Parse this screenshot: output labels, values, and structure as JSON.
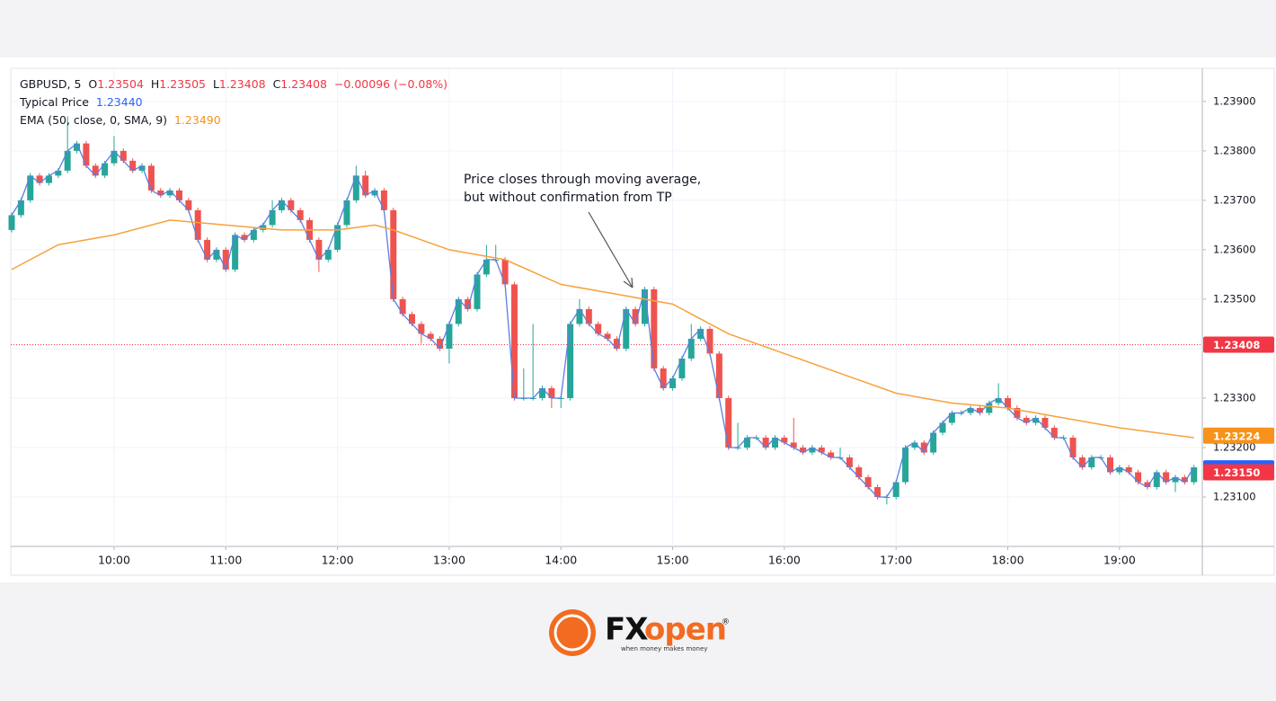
{
  "chart_data": {
    "type": "candlestick",
    "header": {
      "symbol": "GBPUSD, 5",
      "o_label": "O",
      "o": "1.23504",
      "h_label": "H",
      "h": "1.23505",
      "l_label": "L",
      "l": "1.23408",
      "c_label": "C",
      "c": "1.23408",
      "change": "−0.00096 (−0.08%)",
      "tp_value": "1.23440",
      "ema_value": "1.23490"
    },
    "up_color": "#26a69a",
    "down_color": "#ef5350",
    "x": [
      "09:05",
      "09:10",
      "09:15",
      "09:20",
      "09:25",
      "09:30",
      "09:35",
      "09:40",
      "09:45",
      "09:50",
      "09:55",
      "10:00",
      "10:05",
      "10:10",
      "10:15",
      "10:20",
      "10:25",
      "10:30",
      "10:35",
      "10:40",
      "10:45",
      "10:50",
      "10:55",
      "11:00",
      "11:05",
      "11:10",
      "11:15",
      "11:20",
      "11:25",
      "11:30",
      "11:35",
      "11:40",
      "11:45",
      "11:50",
      "11:55",
      "12:00",
      "12:05",
      "12:10",
      "12:15",
      "12:20",
      "12:25",
      "12:30",
      "12:35",
      "12:40",
      "12:45",
      "12:50",
      "12:55",
      "13:00",
      "13:05",
      "13:10",
      "13:15",
      "13:20",
      "13:25",
      "13:30",
      "13:35",
      "13:40",
      "13:45",
      "13:50",
      "13:55",
      "14:00",
      "14:05",
      "14:10",
      "14:15",
      "14:20",
      "14:25",
      "14:30",
      "14:35",
      "14:40",
      "14:45",
      "14:50",
      "14:55",
      "15:00",
      "15:05",
      "15:10",
      "15:15",
      "15:20",
      "15:25",
      "15:30",
      "15:35",
      "15:40",
      "15:45",
      "15:50",
      "15:55",
      "16:00",
      "16:05",
      "16:10",
      "16:15",
      "16:20",
      "16:25",
      "16:30",
      "16:35",
      "16:40",
      "16:45",
      "16:50",
      "16:55",
      "17:00",
      "17:05",
      "17:10",
      "17:15",
      "17:20",
      "17:25",
      "17:30",
      "17:35",
      "17:40",
      "17:45",
      "17:50",
      "17:55",
      "18:00",
      "18:05",
      "18:10",
      "18:15",
      "18:20",
      "18:25",
      "18:30",
      "18:35",
      "18:40",
      "18:45",
      "18:50",
      "18:55",
      "19:00",
      "19:05",
      "19:10",
      "19:15",
      "19:20",
      "19:25",
      "19:30",
      "19:35",
      "19:40"
    ],
    "open": [
      1.2364,
      1.2367,
      1.237,
      1.2375,
      1.23735,
      1.2375,
      1.2376,
      1.238,
      1.23815,
      1.2377,
      1.2375,
      1.23775,
      1.238,
      1.2378,
      1.2376,
      1.2377,
      1.2372,
      1.2371,
      1.2372,
      1.237,
      1.2368,
      1.2362,
      1.2358,
      1.236,
      1.2356,
      1.2363,
      1.2362,
      1.2364,
      1.2365,
      1.2368,
      1.237,
      1.2368,
      1.2366,
      1.2362,
      1.2358,
      1.236,
      1.2365,
      1.237,
      1.2375,
      1.2371,
      1.2372,
      1.2368,
      1.235,
      1.2347,
      1.2345,
      1.2343,
      1.2342,
      1.234,
      1.2345,
      1.235,
      1.2348,
      1.2355,
      1.2358,
      1.2358,
      1.2353,
      1.233,
      1.233,
      1.233,
      1.2332,
      1.233,
      1.233,
      1.2345,
      1.2348,
      1.2345,
      1.2343,
      1.2342,
      1.234,
      1.2348,
      1.2345,
      1.2352,
      1.2336,
      1.2332,
      1.2334,
      1.2338,
      1.2342,
      1.2344,
      1.2339,
      1.233,
      1.232,
      1.232,
      1.2322,
      1.2322,
      1.232,
      1.2322,
      1.2321,
      1.232,
      1.2319,
      1.232,
      1.2319,
      1.2318,
      1.2318,
      1.2316,
      1.2314,
      1.2312,
      1.231,
      1.231,
      1.2313,
      1.232,
      1.2321,
      1.2319,
      1.2323,
      1.2325,
      1.2327,
      1.2327,
      1.2328,
      1.2327,
      1.2329,
      1.233,
      1.2328,
      1.2326,
      1.2325,
      1.2326,
      1.2324,
      1.2322,
      1.2322,
      1.2318,
      1.2316,
      1.2318,
      1.2318,
      1.2315,
      1.2316,
      1.2315,
      1.2313,
      1.2312,
      1.2315,
      1.2313,
      1.2314,
      1.2313
    ],
    "high": [
      1.23675,
      1.23705,
      1.23755,
      1.23755,
      1.23755,
      1.23765,
      1.2387,
      1.2382,
      1.2382,
      1.23775,
      1.2378,
      1.2383,
      1.23805,
      1.23785,
      1.23775,
      1.23775,
      1.23725,
      1.23725,
      1.23725,
      1.23705,
      1.23685,
      1.23625,
      1.23605,
      1.23605,
      1.23635,
      1.23635,
      1.23645,
      1.23655,
      1.237,
      1.23705,
      1.23705,
      1.23685,
      1.23665,
      1.23625,
      1.23605,
      1.23655,
      1.23705,
      1.2377,
      1.2376,
      1.23725,
      1.23725,
      1.23685,
      1.23505,
      1.23475,
      1.23455,
      1.23435,
      1.23425,
      1.23455,
      1.23505,
      1.23505,
      1.23555,
      1.2361,
      1.2361,
      1.23585,
      1.23535,
      1.2336,
      1.2345,
      1.23325,
      1.23325,
      1.23305,
      1.23455,
      1.235,
      1.23485,
      1.23455,
      1.23435,
      1.23425,
      1.23485,
      1.23485,
      1.23525,
      1.23525,
      1.23365,
      1.23345,
      1.23385,
      1.2345,
      1.23445,
      1.23445,
      1.23395,
      1.23305,
      1.2325,
      1.23225,
      1.23225,
      1.23225,
      1.23225,
      1.23225,
      1.2326,
      1.23205,
      1.23205,
      1.23205,
      1.23195,
      1.232,
      1.23185,
      1.23165,
      1.23145,
      1.23125,
      1.23105,
      1.23135,
      1.23205,
      1.23215,
      1.23215,
      1.23235,
      1.23255,
      1.23275,
      1.23275,
      1.23285,
      1.23285,
      1.23295,
      1.2333,
      1.23305,
      1.23285,
      1.23265,
      1.23265,
      1.23265,
      1.23245,
      1.23225,
      1.23225,
      1.23185,
      1.23185,
      1.23185,
      1.23185,
      1.23165,
      1.23165,
      1.23155,
      1.23135,
      1.23155,
      1.23155,
      1.23145,
      1.23145,
      1.23165
    ],
    "low": [
      1.23635,
      1.23665,
      1.23695,
      1.2373,
      1.2373,
      1.23745,
      1.23755,
      1.23795,
      1.23765,
      1.23745,
      1.23745,
      1.2377,
      1.23775,
      1.23755,
      1.23755,
      1.23715,
      1.23705,
      1.23705,
      1.23695,
      1.23675,
      1.23615,
      1.23575,
      1.23575,
      1.23555,
      1.23555,
      1.23615,
      1.23615,
      1.23635,
      1.23645,
      1.23675,
      1.23675,
      1.23655,
      1.23615,
      1.23555,
      1.23575,
      1.23595,
      1.23645,
      1.23695,
      1.23705,
      1.23705,
      1.23675,
      1.23495,
      1.23465,
      1.23445,
      1.2341,
      1.23415,
      1.23395,
      1.2337,
      1.23445,
      1.23475,
      1.23475,
      1.23545,
      1.23575,
      1.23525,
      1.23295,
      1.23295,
      1.23295,
      1.23295,
      1.2328,
      1.2328,
      1.23295,
      1.23445,
      1.23445,
      1.23425,
      1.23415,
      1.23395,
      1.23395,
      1.23445,
      1.23445,
      1.23355,
      1.23315,
      1.23315,
      1.23335,
      1.23375,
      1.23415,
      1.23385,
      1.23295,
      1.23195,
      1.23195,
      1.23195,
      1.23215,
      1.23195,
      1.23195,
      1.23205,
      1.23195,
      1.23185,
      1.23185,
      1.23185,
      1.23175,
      1.23175,
      1.23155,
      1.23135,
      1.23115,
      1.23095,
      1.23085,
      1.23095,
      1.23125,
      1.23195,
      1.23185,
      1.23185,
      1.23225,
      1.23245,
      1.23265,
      1.23265,
      1.23265,
      1.23265,
      1.23285,
      1.23275,
      1.23255,
      1.23245,
      1.23245,
      1.23235,
      1.23215,
      1.23215,
      1.23175,
      1.23155,
      1.23155,
      1.23175,
      1.23145,
      1.23145,
      1.23145,
      1.23125,
      1.23115,
      1.23115,
      1.23125,
      1.2311,
      1.23125,
      1.23125
    ],
    "close": [
      1.2367,
      1.237,
      1.2375,
      1.23735,
      1.2375,
      1.2376,
      1.238,
      1.23815,
      1.2377,
      1.2375,
      1.23775,
      1.238,
      1.2378,
      1.2376,
      1.2377,
      1.2372,
      1.2371,
      1.2372,
      1.237,
      1.2368,
      1.2362,
      1.2358,
      1.236,
      1.2356,
      1.2363,
      1.2362,
      1.2364,
      1.2365,
      1.2368,
      1.237,
      1.2368,
      1.2366,
      1.2362,
      1.2358,
      1.236,
      1.2365,
      1.237,
      1.2375,
      1.2371,
      1.2372,
      1.2368,
      1.235,
      1.2347,
      1.2345,
      1.2343,
      1.2342,
      1.234,
      1.2345,
      1.235,
      1.2348,
      1.2355,
      1.2358,
      1.2358,
      1.2353,
      1.233,
      1.233,
      1.233,
      1.2332,
      1.233,
      1.233,
      1.2345,
      1.2348,
      1.2345,
      1.2343,
      1.2342,
      1.234,
      1.2348,
      1.2345,
      1.2352,
      1.2336,
      1.2332,
      1.2334,
      1.2338,
      1.2342,
      1.2344,
      1.2339,
      1.233,
      1.232,
      1.232,
      1.2322,
      1.2322,
      1.232,
      1.2322,
      1.2321,
      1.232,
      1.2319,
      1.232,
      1.2319,
      1.2318,
      1.2318,
      1.2316,
      1.2314,
      1.2312,
      1.231,
      1.231,
      1.2313,
      1.232,
      1.2321,
      1.2319,
      1.2323,
      1.2325,
      1.2327,
      1.2327,
      1.2328,
      1.2327,
      1.2329,
      1.233,
      1.2328,
      1.2326,
      1.2325,
      1.2326,
      1.2324,
      1.2322,
      1.2322,
      1.2318,
      1.2316,
      1.2318,
      1.2318,
      1.2315,
      1.2316,
      1.2315,
      1.2313,
      1.2312,
      1.2315,
      1.2313,
      1.2314,
      1.2313,
      1.2316
    ],
    "series": [
      {
        "name": "Typical Price",
        "color": "#5b7fe0",
        "values": [
          1.2367,
          1.237,
          1.2375,
          1.23735,
          1.2375,
          1.2376,
          1.238,
          1.23815,
          1.2377,
          1.2375,
          1.23775,
          1.238,
          1.2378,
          1.2376,
          1.2377,
          1.2372,
          1.2371,
          1.2372,
          1.237,
          1.2368,
          1.2362,
          1.2358,
          1.236,
          1.2356,
          1.2363,
          1.2362,
          1.2364,
          1.2365,
          1.2368,
          1.237,
          1.2368,
          1.2366,
          1.2362,
          1.2358,
          1.236,
          1.2365,
          1.237,
          1.2375,
          1.2371,
          1.2372,
          1.2368,
          1.235,
          1.2347,
          1.2345,
          1.2343,
          1.2342,
          1.234,
          1.2345,
          1.235,
          1.2348,
          1.2355,
          1.2358,
          1.2358,
          1.2353,
          1.233,
          1.233,
          1.233,
          1.2332,
          1.233,
          1.233,
          1.2345,
          1.2348,
          1.2345,
          1.2343,
          1.2342,
          1.234,
          1.2348,
          1.2345,
          1.2352,
          1.2336,
          1.2332,
          1.2334,
          1.2338,
          1.2342,
          1.2344,
          1.2339,
          1.233,
          1.232,
          1.232,
          1.2322,
          1.2322,
          1.232,
          1.2322,
          1.2321,
          1.232,
          1.2319,
          1.232,
          1.2319,
          1.2318,
          1.2318,
          1.2316,
          1.2314,
          1.2312,
          1.231,
          1.231,
          1.2313,
          1.232,
          1.2321,
          1.2319,
          1.2323,
          1.2325,
          1.2327,
          1.2327,
          1.2328,
          1.2327,
          1.2329,
          1.233,
          1.2328,
          1.2326,
          1.2325,
          1.2326,
          1.2324,
          1.2322,
          1.2322,
          1.2318,
          1.2316,
          1.2318,
          1.2318,
          1.2315,
          1.2316,
          1.2315,
          1.2313,
          1.2312,
          1.2315,
          1.2313,
          1.2314,
          1.2313,
          1.2316
        ]
      },
      {
        "name": "EMA (50, close, 0, SMA, 9)",
        "color": "#f7a23b",
        "x": [
          "09:05",
          "09:30",
          "10:00",
          "10:30",
          "11:00",
          "11:30",
          "12:00",
          "12:20",
          "12:30",
          "13:00",
          "13:30",
          "14:00",
          "14:30",
          "15:00",
          "15:30",
          "16:00",
          "16:30",
          "17:00",
          "17:30",
          "18:00",
          "18:30",
          "19:00",
          "19:40"
        ],
        "values": [
          1.2356,
          1.2361,
          1.2363,
          1.2366,
          1.2365,
          1.2364,
          1.2364,
          1.2365,
          1.2364,
          1.236,
          1.2358,
          1.2353,
          1.2351,
          1.2349,
          1.2343,
          1.2339,
          1.2335,
          1.2331,
          1.2329,
          1.2328,
          1.2326,
          1.2324,
          1.2322
        ]
      }
    ],
    "ylim": [
      1.23,
      1.23967
    ],
    "yticks": [
      {
        "value": 1.231,
        "label": "1.23100"
      },
      {
        "value": 1.232,
        "label": "1.23200"
      },
      {
        "value": 1.233,
        "label": "1.23300"
      },
      {
        "value": 1.234,
        "label": "1.23400"
      },
      {
        "value": 1.235,
        "label": "1.23500"
      },
      {
        "value": 1.236,
        "label": "1.23600"
      },
      {
        "value": 1.237,
        "label": "1.23700"
      },
      {
        "value": 1.238,
        "label": "1.23800"
      },
      {
        "value": 1.239,
        "label": "1.23900"
      }
    ],
    "xticks": [
      "10:00",
      "11:00",
      "12:00",
      "13:00",
      "14:00",
      "15:00",
      "16:00",
      "17:00",
      "18:00",
      "19:00"
    ],
    "grid": true,
    "price_tags": [
      {
        "price": 1.23408,
        "color": "#f23645",
        "dotted_line": true
      },
      {
        "price": 1.23224,
        "color": "#f7931a",
        "dotted_line": false
      },
      {
        "price": 1.23158,
        "color": "#2962ff",
        "dotted_line": false
      },
      {
        "price": {
          "value": 1.2315,
          "label": "1.23150"
        },
        "color": "#f23645",
        "dotted_line": false
      }
    ],
    "annotation": [
      "Price closes through moving average,",
      "but without confirmation from TP"
    ]
  },
  "logo": {
    "brand_fx": "FX",
    "brand_open": "open",
    "registered": "®",
    "tagline": "when money makes money"
  }
}
